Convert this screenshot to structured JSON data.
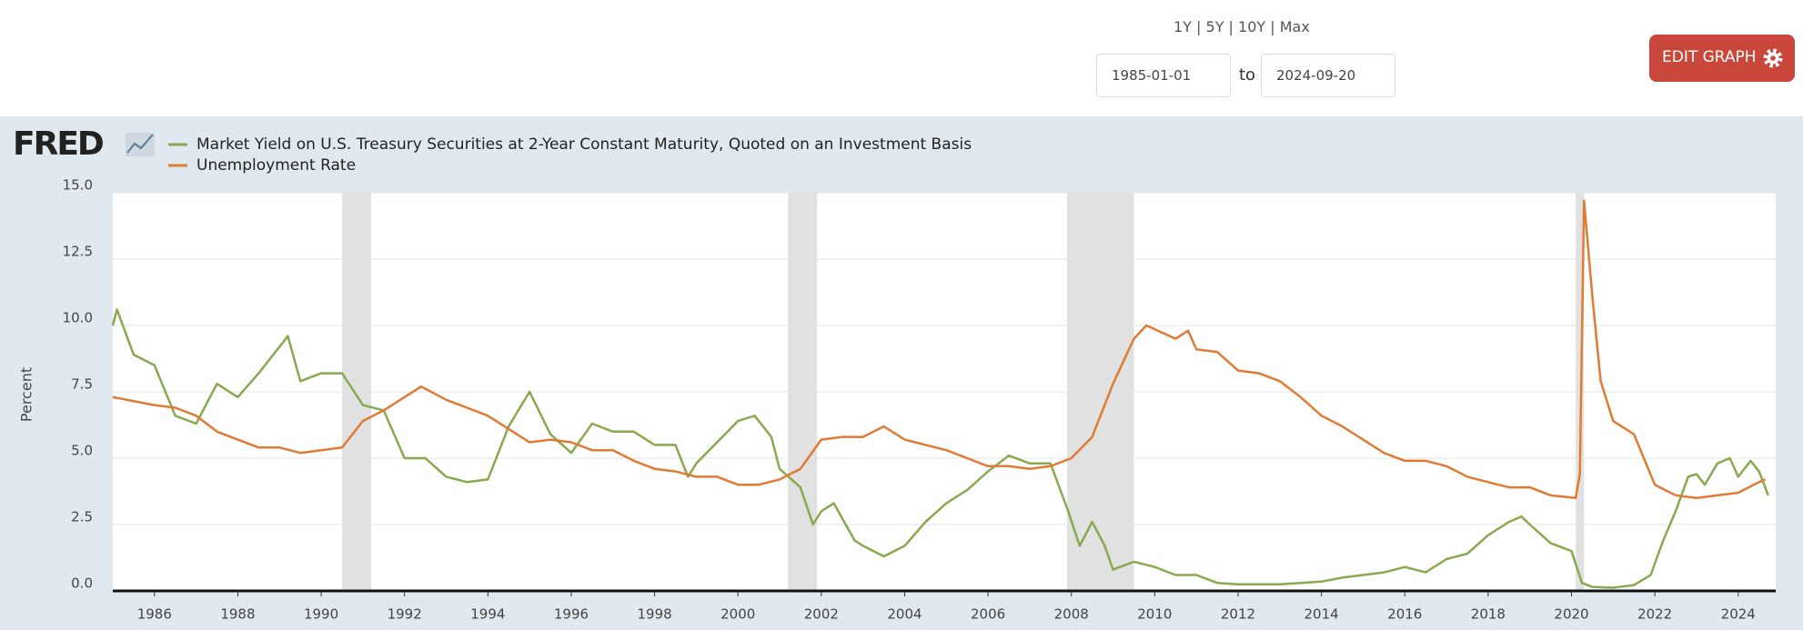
{
  "header": {
    "ranges": "1Y | 5Y | 10Y | Max",
    "start_date": "1985-01-01",
    "to": "to",
    "end_date": "2024-09-20",
    "button": "EDIT GRAPH"
  },
  "logo": "FRED",
  "chart_data": {
    "type": "line",
    "ylabel": "Percent",
    "xlim": [
      1985,
      2024.9
    ],
    "xticks": [
      1986,
      1988,
      1990,
      1992,
      1994,
      1996,
      1998,
      2000,
      2002,
      2004,
      2006,
      2008,
      2010,
      2012,
      2014,
      2016,
      2018,
      2020,
      2022,
      2024
    ],
    "ylim": [
      0,
      15
    ],
    "yticks": [
      {
        "value": 0,
        "label": "0.0"
      },
      {
        "value": 2.5,
        "label": "2.5"
      },
      {
        "value": 5,
        "label": "5.0"
      },
      {
        "value": 7.5,
        "label": "7.5"
      },
      {
        "value": 10,
        "label": "10.0"
      },
      {
        "value": 12.5,
        "label": "12.5"
      },
      {
        "value": 15,
        "label": "15.0"
      }
    ],
    "grid": true,
    "recessions": [
      [
        1990.5,
        1991.2
      ],
      [
        2001.2,
        2001.9
      ],
      [
        2007.9,
        2009.5
      ],
      [
        2020.1,
        2020.3
      ]
    ],
    "series": [
      {
        "name": "Market Yield on U.S. Treasury Securities at 2-Year Constant Maturity, Quoted on an Investment Basis",
        "color": "#89a84f",
        "x": [
          1985.0,
          1985.1,
          1985.5,
          1986.0,
          1986.5,
          1987.0,
          1987.5,
          1988.0,
          1988.5,
          1989.0,
          1989.2,
          1989.5,
          1990.0,
          1990.5,
          1991.0,
          1991.5,
          1992.0,
          1992.5,
          1993.0,
          1993.5,
          1994.0,
          1994.5,
          1995.0,
          1995.5,
          1996.0,
          1996.5,
          1997.0,
          1997.5,
          1998.0,
          1998.5,
          1998.8,
          1999.0,
          1999.5,
          2000.0,
          2000.4,
          2000.8,
          2001.0,
          2001.5,
          2001.8,
          2002.0,
          2002.3,
          2002.8,
          2003.0,
          2003.5,
          2004.0,
          2004.5,
          2005.0,
          2005.5,
          2006.0,
          2006.5,
          2007.0,
          2007.5,
          2007.9,
          2008.2,
          2008.5,
          2008.8,
          2009.0,
          2009.5,
          2010.0,
          2010.5,
          2011.0,
          2011.5,
          2012.0,
          2013.0,
          2014.0,
          2014.5,
          2015.0,
          2015.5,
          2016.0,
          2016.5,
          2017.0,
          2017.5,
          2018.0,
          2018.5,
          2018.8,
          2019.0,
          2019.5,
          2020.0,
          2020.25,
          2020.5,
          2021.0,
          2021.5,
          2021.9,
          2022.2,
          2022.5,
          2022.8,
          2023.0,
          2023.2,
          2023.5,
          2023.8,
          2024.0,
          2024.3,
          2024.5,
          2024.72
        ],
        "values": [
          10.0,
          10.6,
          8.9,
          8.5,
          6.6,
          6.3,
          7.8,
          7.3,
          8.2,
          9.2,
          9.6,
          7.9,
          8.2,
          8.2,
          7.0,
          6.8,
          5.0,
          5.0,
          4.3,
          4.1,
          4.2,
          6.2,
          7.5,
          5.9,
          5.2,
          6.3,
          6.0,
          6.0,
          5.5,
          5.5,
          4.3,
          4.8,
          5.6,
          6.4,
          6.6,
          5.8,
          4.6,
          3.9,
          2.5,
          3.0,
          3.3,
          1.9,
          1.7,
          1.3,
          1.7,
          2.6,
          3.3,
          3.8,
          4.5,
          5.1,
          4.8,
          4.8,
          3.1,
          1.7,
          2.6,
          1.7,
          0.8,
          1.1,
          0.9,
          0.6,
          0.6,
          0.3,
          0.25,
          0.25,
          0.35,
          0.5,
          0.6,
          0.7,
          0.9,
          0.7,
          1.2,
          1.4,
          2.1,
          2.6,
          2.8,
          2.5,
          1.8,
          1.5,
          0.3,
          0.15,
          0.12,
          0.22,
          0.6,
          1.9,
          3.0,
          4.3,
          4.4,
          4.0,
          4.8,
          5.0,
          4.3,
          4.9,
          4.5,
          3.6
        ]
      },
      {
        "name": "Unemployment Rate",
        "color": "#e07b35",
        "x": [
          1985.0,
          1986.0,
          1986.5,
          1987.0,
          1987.5,
          1988.0,
          1988.5,
          1989.0,
          1989.5,
          1990.0,
          1990.5,
          1991.0,
          1991.5,
          1992.0,
          1992.4,
          1993.0,
          1993.5,
          1994.0,
          1994.5,
          1995.0,
          1995.5,
          1996.0,
          1996.5,
          1997.0,
          1997.5,
          1998.0,
          1998.5,
          1999.0,
          1999.5,
          2000.0,
          2000.5,
          2001.0,
          2001.5,
          2002.0,
          2002.5,
          2003.0,
          2003.5,
          2004.0,
          2004.5,
          2005.0,
          2005.5,
          2006.0,
          2006.5,
          2007.0,
          2007.5,
          2008.0,
          2008.5,
          2009.0,
          2009.5,
          2009.8,
          2010.5,
          2010.8,
          2011.0,
          2011.5,
          2012.0,
          2012.5,
          2013.0,
          2013.5,
          2014.0,
          2014.5,
          2015.0,
          2015.5,
          2016.0,
          2016.5,
          2017.0,
          2017.5,
          2018.0,
          2018.5,
          2019.0,
          2019.5,
          2020.1,
          2020.2,
          2020.3,
          2020.5,
          2020.7,
          2021.0,
          2021.5,
          2022.0,
          2022.5,
          2023.0,
          2023.5,
          2024.0,
          2024.5,
          2024.65
        ],
        "values": [
          7.3,
          7.0,
          6.9,
          6.6,
          6.0,
          5.7,
          5.4,
          5.4,
          5.2,
          5.3,
          5.4,
          6.4,
          6.8,
          7.3,
          7.7,
          7.2,
          6.9,
          6.6,
          6.1,
          5.6,
          5.7,
          5.6,
          5.3,
          5.3,
          4.9,
          4.6,
          4.5,
          4.3,
          4.3,
          4.0,
          4.0,
          4.2,
          4.6,
          5.7,
          5.8,
          5.8,
          6.2,
          5.7,
          5.5,
          5.3,
          5.0,
          4.7,
          4.7,
          4.6,
          4.7,
          5.0,
          5.8,
          7.8,
          9.5,
          10.0,
          9.5,
          9.8,
          9.1,
          9.0,
          8.3,
          8.2,
          7.9,
          7.3,
          6.6,
          6.2,
          5.7,
          5.2,
          4.9,
          4.9,
          4.7,
          4.3,
          4.1,
          3.9,
          3.9,
          3.6,
          3.5,
          4.4,
          14.7,
          11.1,
          7.9,
          6.4,
          5.9,
          4.0,
          3.6,
          3.5,
          3.6,
          3.7,
          4.1,
          4.2
        ]
      }
    ]
  }
}
